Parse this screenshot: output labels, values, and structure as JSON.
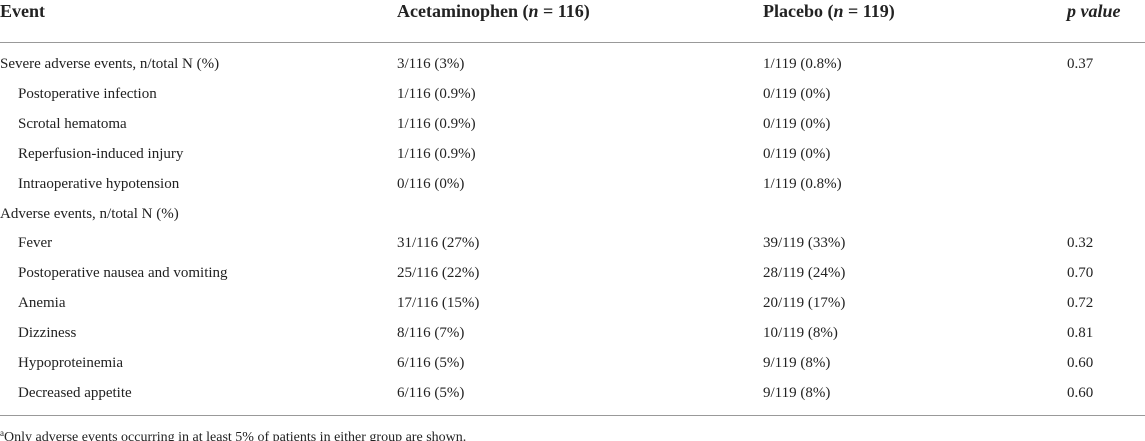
{
  "table": {
    "columns": [
      [
        "Event"
      ],
      [
        "Acetaminophen (",
        "n",
        " = 116)"
      ],
      [
        "Placebo (",
        "n",
        " = 119)"
      ],
      [
        "p",
        " value"
      ]
    ],
    "sections": [
      {
        "row": [
          "Severe adverse events, n/total N (%)",
          "3/116 (3%)",
          "1/119 (0.8%)",
          "0.37"
        ],
        "items": [
          [
            "Postoperative infection",
            "1/116 (0.9%)",
            "0/119 (0%)"
          ],
          [
            "Scrotal hematoma",
            "1/116 (0.9%)",
            "0/119 (0%)"
          ],
          [
            "Reperfusion-induced injury",
            "1/116 (0.9%)",
            "0/119 (0%)"
          ],
          [
            "Intraoperative hypotension",
            "0/116 (0%)",
            "1/119 (0.8%)"
          ]
        ]
      },
      {
        "row": [
          "Adverse events, n/total N (%)"
        ],
        "items": [
          [
            "Fever",
            "31/116 (27%)",
            "39/119 (33%)",
            "0.32"
          ],
          [
            "Postoperative nausea and vomiting",
            "25/116 (22%)",
            "28/119 (24%)",
            "0.70"
          ],
          [
            "Anemia",
            "17/116 (15%)",
            "20/119 (17%)",
            "0.72"
          ],
          [
            "Dizziness",
            "8/116 (7%)",
            "10/119 (8%)",
            "0.81"
          ],
          [
            "Hypoproteinemia",
            "6/116 (5%)",
            "9/119 (8%)",
            "0.60"
          ],
          [
            "Decreased appetite",
            "6/116 (5%)",
            "9/119 (8%)",
            "0.60"
          ]
        ]
      }
    ],
    "footnote": [
      "a",
      "Only adverse events occurring in at least 5% of patients in either group are shown."
    ]
  }
}
